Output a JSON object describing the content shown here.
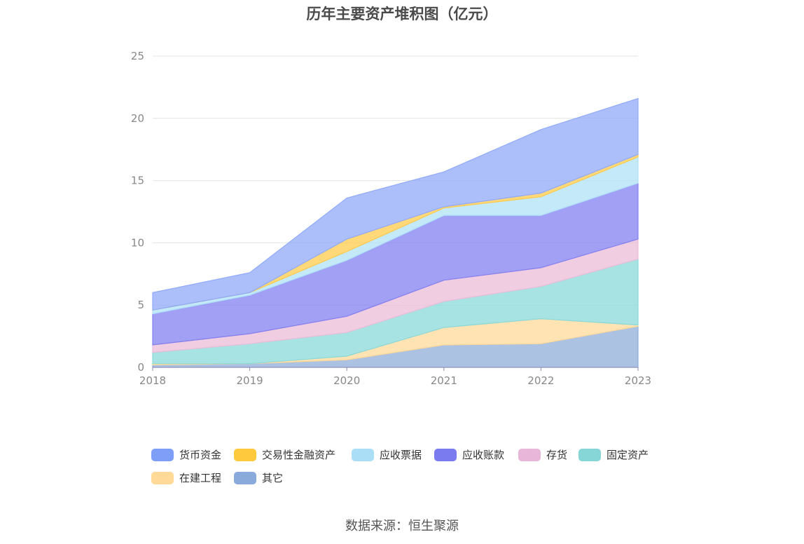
{
  "chart_data": {
    "type": "area",
    "stacked": true,
    "title": "历年主要资产堆积图（亿元）",
    "categories": [
      "2018",
      "2019",
      "2020",
      "2021",
      "2022",
      "2023"
    ],
    "ylim": [
      0,
      25
    ],
    "yticks": [
      0,
      5,
      10,
      15,
      20,
      25
    ],
    "grid": true,
    "legend_position": "bottom",
    "series": [
      {
        "name": "其它",
        "color": "#8fadd9",
        "values": [
          0.2,
          0.3,
          0.6,
          1.8,
          1.9,
          3.3
        ]
      },
      {
        "name": "在建工程",
        "color": "#ffd99a",
        "values": [
          0.1,
          0.0,
          0.3,
          1.4,
          2.0,
          0.1
        ]
      },
      {
        "name": "固定资产",
        "color": "#8ad9da",
        "values": [
          0.9,
          1.6,
          1.9,
          2.1,
          2.6,
          5.3
        ]
      },
      {
        "name": "存货",
        "color": "#ecbcd8",
        "values": [
          0.6,
          0.8,
          1.3,
          1.7,
          1.5,
          1.6
        ]
      },
      {
        "name": "应收账款",
        "color": "#8280f0",
        "values": [
          2.5,
          3.1,
          4.5,
          5.2,
          4.2,
          4.5
        ]
      },
      {
        "name": "应收票据",
        "color": "#b0e2f7",
        "values": [
          0.3,
          0.2,
          0.7,
          0.6,
          1.5,
          2.1
        ]
      },
      {
        "name": "交易性金融资产",
        "color": "#ffcb4d",
        "values": [
          0.0,
          0.0,
          1.0,
          0.1,
          0.3,
          0.2
        ]
      },
      {
        "name": "货币资金",
        "color": "#90aafa",
        "values": [
          1.4,
          1.6,
          3.3,
          2.8,
          5.1,
          4.5
        ]
      }
    ]
  },
  "legend_order": [
    {
      "name": "货币资金",
      "color": "#7f9ef8"
    },
    {
      "name": "交易性金融资产",
      "color": "#ffc93e"
    },
    {
      "name": "应收票据",
      "color": "#a9def6"
    },
    {
      "name": "应收账款",
      "color": "#7b7bf0"
    },
    {
      "name": "存货",
      "color": "#e8b6d8"
    },
    {
      "name": "固定资产",
      "color": "#86d6d8"
    },
    {
      "name": "在建工程",
      "color": "#ffd997"
    },
    {
      "name": "其它",
      "color": "#8aaadb"
    }
  ],
  "source": "数据来源：恒生聚源"
}
